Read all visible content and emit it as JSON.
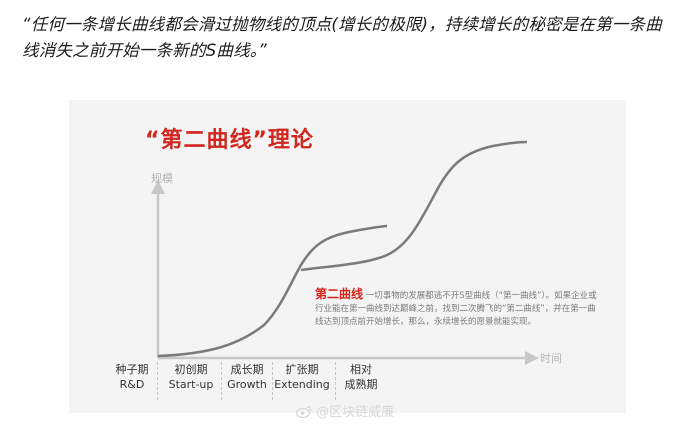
{
  "quote": "“任何一条增长曲线都会滑过抛物线的顶点(增长的极限)，持续增长的秘密是在第一条曲线消失之前开始一条新的S曲线。”",
  "figure": {
    "title": "“第二曲线”理论",
    "y_axis_label": "规模",
    "x_axis_label": "时间",
    "description_key": "第二曲线",
    "description_text": "一切事物的发展都逃不开S型曲线（“第一曲线”）。如果企业或行业能在第一曲线到达巅峰之前，找到二次腾飞的“第二曲线”，并在第一曲线达到顶点前开始增长，那么，永续增长的愿景就能实现。",
    "stages": [
      {
        "zh": "种子期",
        "en": "R&D"
      },
      {
        "zh": "初创期",
        "en": "Start-up"
      },
      {
        "zh": "成长期",
        "en": "Growth"
      },
      {
        "zh": "扩张期",
        "en": "Extending"
      },
      {
        "zh": "相对",
        "en": "成熟期"
      }
    ],
    "colors": {
      "title": "#d2261d",
      "curve": "#7a7a7a",
      "axis": "#c8c8c8",
      "background": "#f4f4f4"
    }
  },
  "watermark": "@区块链威廉",
  "watermark_icon": "weibo-icon"
}
